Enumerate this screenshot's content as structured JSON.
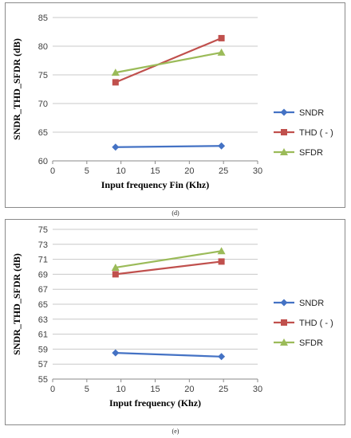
{
  "chart_data": [
    {
      "type": "line",
      "caption": "(d)",
      "xlabel": "Input  frequency Fin (Khz)",
      "ylabel": "SNDR_THD_SFDR (dB)",
      "xlim": [
        0,
        30
      ],
      "ylim": [
        60,
        85
      ],
      "x_ticks": [
        0,
        5,
        10,
        15,
        20,
        25,
        30
      ],
      "y_ticks": [
        60,
        65,
        70,
        75,
        80,
        85
      ],
      "grid": "horizontal",
      "legend_position": "right",
      "series": [
        {
          "name": "SNDR",
          "color": "#4472c4",
          "marker": "diamond",
          "x": [
            9.2,
            24.7
          ],
          "y": [
            62.4,
            62.6
          ]
        },
        {
          "name": "THD ( - )",
          "color": "#c0504d",
          "marker": "square",
          "x": [
            9.2,
            24.7
          ],
          "y": [
            73.7,
            81.4
          ]
        },
        {
          "name": "SFDR",
          "color": "#9bbb59",
          "marker": "triangle",
          "x": [
            9.2,
            24.7
          ],
          "y": [
            75.4,
            78.9
          ]
        }
      ]
    },
    {
      "type": "line",
      "caption": "(e)",
      "xlabel": "Input frequency (Khz)",
      "ylabel": "SNDR_THD_SFDR (dB)",
      "xlim": [
        0,
        30
      ],
      "ylim": [
        55,
        75
      ],
      "x_ticks": [
        0,
        5,
        10,
        15,
        20,
        25,
        30
      ],
      "y_ticks": [
        55,
        57,
        59,
        61,
        63,
        65,
        67,
        69,
        71,
        73,
        75
      ],
      "grid": "horizontal",
      "legend_position": "right",
      "series": [
        {
          "name": "SNDR",
          "color": "#4472c4",
          "marker": "diamond",
          "x": [
            9.2,
            24.7
          ],
          "y": [
            58.5,
            58.0
          ]
        },
        {
          "name": "THD ( - )",
          "color": "#c0504d",
          "marker": "square",
          "x": [
            9.2,
            24.7
          ],
          "y": [
            69.0,
            70.7
          ]
        },
        {
          "name": "SFDR",
          "color": "#9bbb59",
          "marker": "triangle",
          "x": [
            9.2,
            24.7
          ],
          "y": [
            69.9,
            72.1
          ]
        }
      ]
    }
  ]
}
